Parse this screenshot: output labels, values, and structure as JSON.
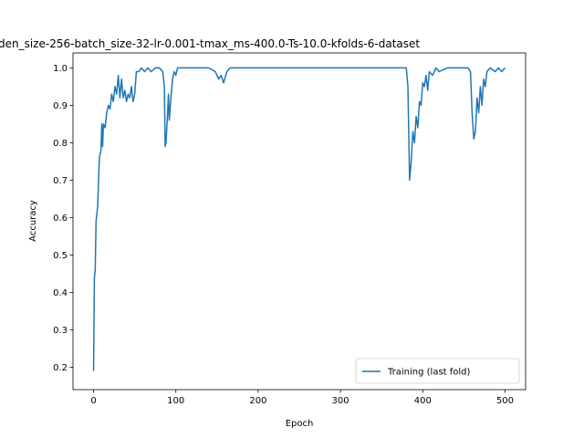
{
  "chart_data": {
    "type": "line",
    "title": "den_size-256-batch_size-32-lr-0.001-tmax_ms-400.0-Ts-10.0-kfolds-6-dataset",
    "xlabel": "Epoch",
    "ylabel": "Accuracy",
    "x": [
      0,
      1,
      2,
      3,
      5,
      7,
      9,
      10,
      11,
      12,
      14,
      16,
      18,
      20,
      22,
      24,
      26,
      28,
      30,
      32,
      34,
      36,
      38,
      40,
      42,
      44,
      46,
      48,
      50,
      52,
      55,
      58,
      62,
      66,
      70,
      75,
      80,
      84,
      86,
      87,
      88,
      90,
      91,
      92,
      94,
      96,
      98,
      100,
      102,
      110,
      120,
      130,
      140,
      148,
      152,
      155,
      158,
      162,
      166,
      170,
      200,
      300,
      380,
      382,
      384,
      386,
      388,
      390,
      392,
      394,
      396,
      398,
      400,
      402,
      404,
      406,
      408,
      412,
      416,
      420,
      430,
      440,
      455,
      458,
      460,
      462,
      464,
      466,
      468,
      470,
      472,
      474,
      476,
      478,
      482,
      488,
      492,
      496,
      500
    ],
    "series": [
      {
        "name": "Training (last fold)",
        "color": "#1f77b4",
        "values": [
          0.19,
          0.44,
          0.46,
          0.59,
          0.63,
          0.76,
          0.78,
          0.85,
          0.79,
          0.85,
          0.84,
          0.88,
          0.9,
          0.89,
          0.93,
          0.91,
          0.95,
          0.93,
          0.98,
          0.92,
          0.97,
          0.92,
          0.94,
          0.91,
          0.93,
          0.92,
          0.95,
          0.91,
          0.93,
          0.99,
          0.99,
          1.0,
          0.99,
          1.0,
          0.99,
          1.0,
          1.0,
          0.99,
          0.95,
          0.79,
          0.8,
          0.88,
          0.93,
          0.86,
          0.92,
          0.97,
          0.99,
          0.98,
          1.0,
          1.0,
          1.0,
          1.0,
          1.0,
          0.99,
          0.97,
          0.98,
          0.96,
          0.99,
          1.0,
          1.0,
          1.0,
          1.0,
          1.0,
          0.95,
          0.7,
          0.75,
          0.83,
          0.8,
          0.87,
          0.84,
          0.91,
          0.9,
          0.96,
          0.95,
          0.98,
          0.94,
          0.99,
          0.98,
          1.0,
          0.99,
          1.0,
          1.0,
          1.0,
          0.99,
          0.88,
          0.81,
          0.83,
          0.92,
          0.88,
          0.95,
          0.9,
          0.97,
          0.95,
          0.99,
          1.0,
          0.99,
          1.0,
          0.99,
          1.0
        ]
      }
    ],
    "xlim": [
      -25,
      525
    ],
    "ylim": [
      0.14,
      1.04
    ],
    "xticks": [
      0,
      100,
      200,
      300,
      400,
      500
    ],
    "yticks": [
      0.2,
      0.3,
      0.4,
      0.5,
      0.6,
      0.7,
      0.8,
      0.9,
      {
        "value": 1,
        "label": "1.0"
      }
    ],
    "legend": "lower right"
  }
}
